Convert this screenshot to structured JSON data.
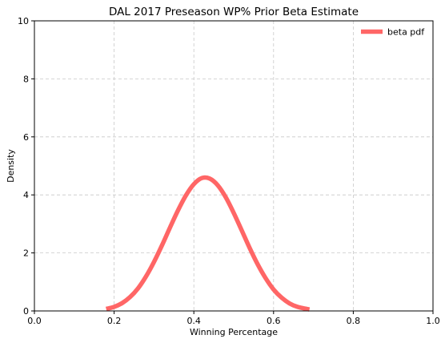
{
  "chart_data": {
    "type": "line",
    "title": "DAL 2017 Preseason WP% Prior Beta Estimate",
    "xlabel": "Winning Percentage",
    "ylabel": "Density",
    "xlim": [
      0,
      1
    ],
    "ylim": [
      0,
      10
    ],
    "x_ticks": [
      "0.0",
      "0.2",
      "0.4",
      "0.6",
      "0.8",
      "1.0"
    ],
    "y_ticks": [
      "0",
      "2",
      "4",
      "6",
      "8",
      "10"
    ],
    "grid": true,
    "legend_position": "top-right",
    "series": [
      {
        "name": "beta pdf",
        "color": "#ff6666",
        "x": [
          0.18,
          0.2,
          0.22,
          0.24,
          0.26,
          0.28,
          0.3,
          0.32,
          0.34,
          0.36,
          0.38,
          0.4,
          0.42,
          0.44,
          0.46,
          0.48,
          0.5,
          0.52,
          0.54,
          0.56,
          0.58,
          0.6,
          0.62,
          0.64,
          0.66,
          0.69
        ],
        "y": [
          0.07,
          0.14,
          0.27,
          0.48,
          0.78,
          1.19,
          1.69,
          2.26,
          2.87,
          3.46,
          3.98,
          4.37,
          4.58,
          4.56,
          4.33,
          3.92,
          3.38,
          2.78,
          2.17,
          1.61,
          1.13,
          0.74,
          0.46,
          0.26,
          0.14,
          0.05
        ]
      }
    ]
  }
}
